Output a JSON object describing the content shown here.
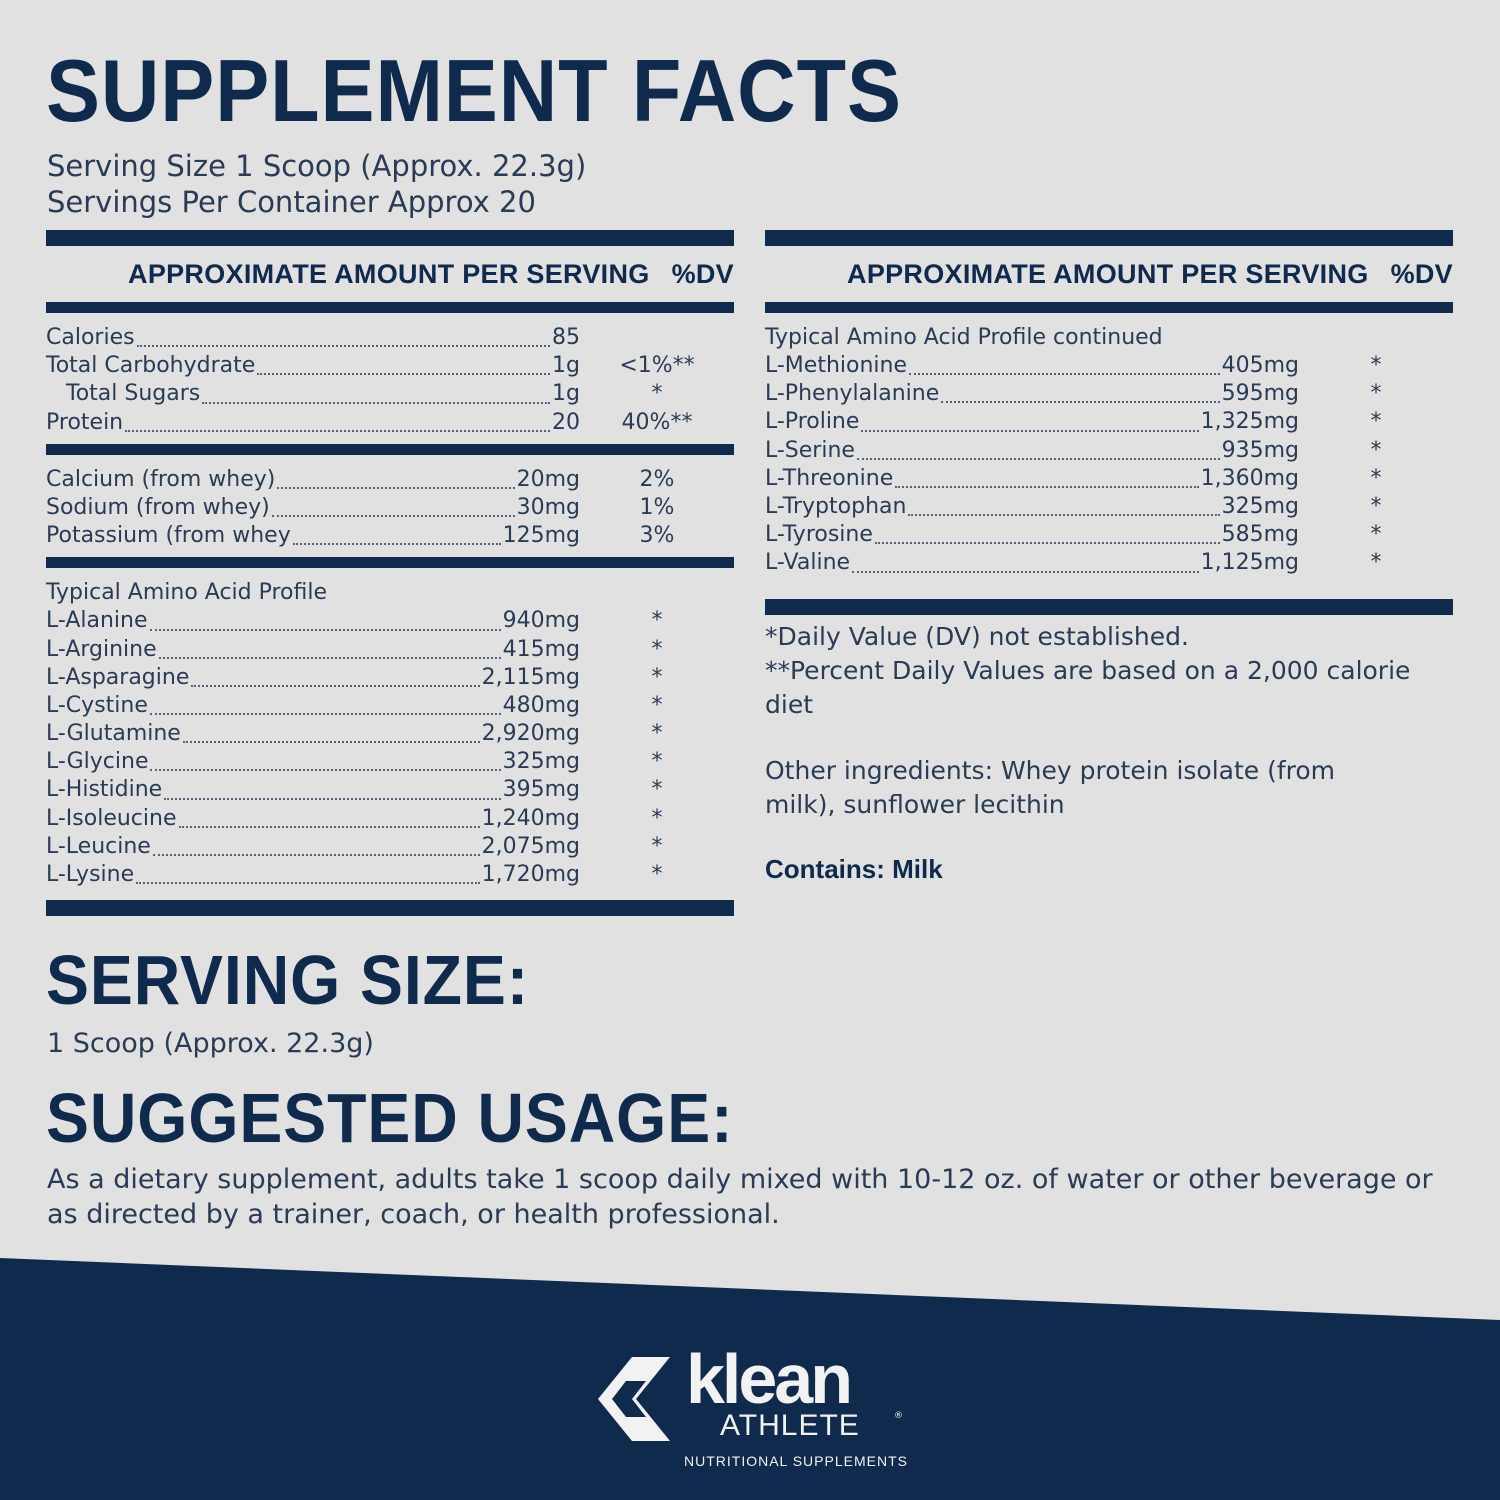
{
  "title": "SUPPLEMENT FACTS",
  "serving_size_line": "Serving Size 1 Scoop (Approx. 22.3g)",
  "servings_per_container_line": "Servings Per Container Approx 20",
  "column_header": {
    "amount": "APPROXIMATE AMOUNT PER SERVING",
    "dv": "%DV"
  },
  "left": {
    "macros": [
      {
        "name": "Calories",
        "amount": "85",
        "dv": ""
      },
      {
        "name": "Total Carbohydrate",
        "amount": "1g",
        "dv": "<1%**"
      },
      {
        "name": "Total Sugars",
        "amount": "1g",
        "dv": "*"
      },
      {
        "name": "Protein",
        "amount": "20",
        "dv": "40%**"
      }
    ],
    "minerals": [
      {
        "name": "Calcium (from whey)",
        "amount": "20mg",
        "dv": "2%"
      },
      {
        "name": "Sodium (from whey)",
        "amount": "30mg",
        "dv": "1%"
      },
      {
        "name": "Potassium (from whey",
        "amount": "125mg",
        "dv": "3%"
      }
    ],
    "amino_heading": "Typical Amino Acid Profile",
    "amino": [
      {
        "name": "L-Alanine",
        "amount": "940mg",
        "dv": "*"
      },
      {
        "name": "L-Arginine",
        "amount": "415mg",
        "dv": "*"
      },
      {
        "name": "L-Asparagine",
        "amount": "2,115mg",
        "dv": "*"
      },
      {
        "name": "L-Cystine",
        "amount": "480mg",
        "dv": "*"
      },
      {
        "name": "L-Glutamine",
        "amount": "2,920mg",
        "dv": "*"
      },
      {
        "name": "L-Glycine",
        "amount": "325mg",
        "dv": "*"
      },
      {
        "name": "L-Histidine",
        "amount": "395mg",
        "dv": "*"
      },
      {
        "name": "L-Isoleucine",
        "amount": "1,240mg",
        "dv": "*"
      },
      {
        "name": "L-Leucine",
        "amount": "2,075mg",
        "dv": "*"
      },
      {
        "name": "L-Lysine",
        "amount": "1,720mg",
        "dv": "*"
      }
    ]
  },
  "right": {
    "amino_heading": "Typical Amino Acid Profile continued",
    "amino": [
      {
        "name": "L-Methionine",
        "amount": "405mg",
        "dv": "*"
      },
      {
        "name": "L-Phenylalanine",
        "amount": "595mg",
        "dv": "*"
      },
      {
        "name": "L-Proline",
        "amount": "1,325mg",
        "dv": "*"
      },
      {
        "name": "L-Serine",
        "amount": "935mg",
        "dv": "*"
      },
      {
        "name": "L-Threonine",
        "amount": "1,360mg",
        "dv": "*"
      },
      {
        "name": "L-Tryptophan",
        "amount": "325mg",
        "dv": "*"
      },
      {
        "name": "L-Tyrosine",
        "amount": "585mg",
        "dv": "*"
      },
      {
        "name": "L-Valine",
        "amount": "1,125mg",
        "dv": "*"
      }
    ]
  },
  "notes": {
    "dv_not_established": "*Daily Value (DV) not established.",
    "percent_dv_basis": "**Percent Daily Values are based on a 2,000 calorie diet",
    "other_ingredients": "Other ingredients: Whey protein isolate (from milk), sunflower lecithin",
    "contains": "Contains: Milk"
  },
  "serving_size_heading": "SERVING SIZE:",
  "serving_size_text": "1 Scoop (Approx. 22.3g)",
  "suggested_usage_heading": "SUGGESTED USAGE:",
  "suggested_usage_text": "As a dietary supplement, adults take 1 scoop daily mixed with 10-12 oz. of water or other beverage or as directed by a trainer, coach, or health professional.",
  "logo": {
    "word": "klean",
    "sub": "ATHLETE",
    "mark": "®",
    "tagline": "NUTRITIONAL SUPPLEMENTS"
  },
  "colors": {
    "navy": "#0f2a4c",
    "background": "#e1e1e1",
    "text": "#2a3b55"
  }
}
